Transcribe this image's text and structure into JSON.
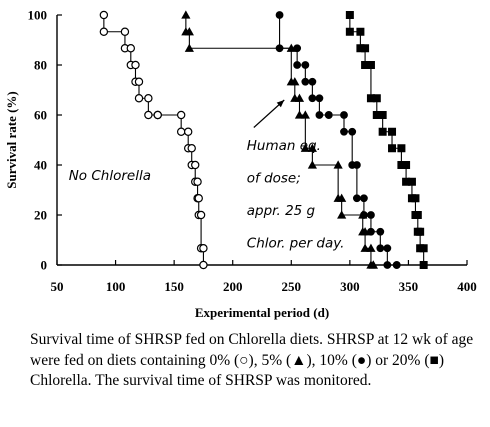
{
  "chart_data": {
    "type": "line",
    "title": "",
    "xlabel": "Experimental period (d)",
    "ylabel": "Survival rate (%)",
    "xlim": [
      50,
      400
    ],
    "ylim": [
      0,
      100
    ],
    "xticks": [
      50,
      100,
      150,
      200,
      250,
      300,
      350,
      400
    ],
    "yticks": [
      0,
      20,
      40,
      60,
      80,
      100
    ],
    "grid": false,
    "series": [
      {
        "marker": "open-circle",
        "x": [
          90,
          90,
          108,
          108,
          113,
          113,
          117,
          117,
          120,
          120,
          128,
          128,
          136,
          136,
          156,
          156,
          162,
          162,
          165,
          165,
          168,
          168,
          170,
          170,
          171,
          171,
          173,
          173,
          175,
          175
        ],
        "y": [
          100,
          93.3,
          93.3,
          86.7,
          86.7,
          80,
          80,
          73.3,
          73.3,
          66.7,
          66.7,
          60,
          60,
          60,
          60,
          53.3,
          53.3,
          46.7,
          46.7,
          40,
          40,
          33.3,
          33.3,
          26.7,
          26.7,
          20,
          20,
          6.7,
          6.7,
          0
        ]
      },
      {
        "marker": "filled-triangle",
        "x": [
          160,
          160,
          163,
          163,
          250,
          250,
          253,
          253,
          257,
          257,
          262,
          262,
          268,
          268,
          290,
          290,
          293,
          293,
          311,
          311,
          313,
          313,
          318,
          318,
          320,
          320
        ],
        "y": [
          100,
          93.3,
          93.3,
          86.7,
          86.7,
          73.3,
          73.3,
          66.7,
          66.7,
          60,
          60,
          46.7,
          46.7,
          40,
          40,
          26.7,
          26.7,
          20,
          20,
          13.3,
          13.3,
          6.7,
          6.7,
          0,
          0,
          0
        ]
      },
      {
        "marker": "filled-circle",
        "x": [
          240,
          240,
          255,
          255,
          262,
          262,
          268,
          268,
          274,
          274,
          282,
          282,
          295,
          295,
          302,
          302,
          306,
          306,
          312,
          312,
          318,
          318,
          326,
          326,
          332,
          332,
          340,
          340
        ],
        "y": [
          100,
          86.7,
          86.7,
          80,
          80,
          73.3,
          73.3,
          66.7,
          66.7,
          60,
          60,
          60,
          60,
          53.3,
          53.3,
          40,
          40,
          26.7,
          26.7,
          20,
          20,
          13.3,
          13.3,
          6.7,
          6.7,
          0,
          0,
          0
        ]
      },
      {
        "marker": "filled-square",
        "x": [
          300,
          300,
          309,
          309,
          313,
          313,
          318,
          318,
          323,
          323,
          328,
          328,
          336,
          336,
          344,
          344,
          348,
          348,
          353,
          353,
          356,
          356,
          358,
          358,
          360,
          360,
          363,
          363
        ],
        "y": [
          100,
          93.3,
          93.3,
          86.7,
          86.7,
          80,
          80,
          66.7,
          66.7,
          60,
          60,
          53.3,
          53.3,
          46.7,
          46.7,
          40,
          40,
          33.3,
          33.3,
          26.7,
          26.7,
          20,
          20,
          13.3,
          13.3,
          6.7,
          6.7,
          0
        ]
      }
    ],
    "annotations": [
      {
        "text": "No Chlorella",
        "x": 60,
        "y": 34
      },
      {
        "text": "Human eq.",
        "x": 212,
        "y": 46
      },
      {
        "text": "of dose;",
        "x": 212,
        "y": 33
      },
      {
        "text": "appr. 25 g",
        "x": 212,
        "y": 20
      },
      {
        "text": "Chlor. per day.",
        "x": 212,
        "y": 7
      }
    ]
  },
  "caption": "Survival time of SHRSP fed on Chlorella diets. SHRSP at 12 wk of age were fed on diets containing 0% (○), 5% (▲), 10% (●) or 20% (■) Chlorella. The survival time of SHRSP was monitored."
}
